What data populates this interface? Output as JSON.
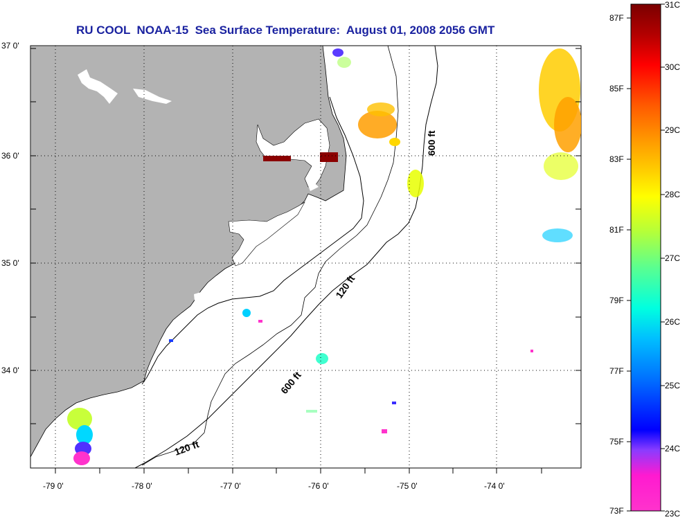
{
  "title": "RU COOL  NOAA-15  Sea Surface Temperature:  August 01, 2008 2056 GMT",
  "lat_labels": [
    "37 0'",
    "36 0'",
    "35 0'",
    "34 0'"
  ],
  "lon_labels": [
    "-79 0'",
    "-78 0'",
    "-77 0'",
    "-76 0'",
    "-75 0'",
    "-74 0'"
  ],
  "isobath_labels": [
    "600 ft",
    "120 ft",
    "600 ft",
    "120 ft"
  ],
  "colorbar": {
    "fahrenheit": [
      "87F",
      "85F",
      "83F",
      "81F",
      "79F",
      "77F",
      "75F",
      "73F"
    ],
    "celsius": [
      "31C",
      "30C",
      "29C",
      "28C",
      "27C",
      "26C",
      "25C",
      "24C",
      "23C"
    ]
  },
  "colors": {
    "title": "#1a22a0",
    "land": "#b3b3b3",
    "ocean": "#ffffff"
  }
}
